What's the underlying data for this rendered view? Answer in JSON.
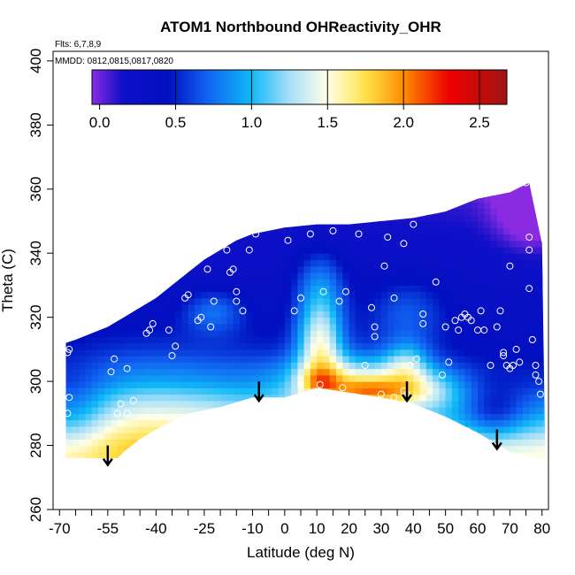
{
  "chart_data": {
    "type": "heatmap",
    "title": "ATOM1 Northbound OHReactivity_OHR",
    "annotations": {
      "flights": "Flts: 6,7,8,9",
      "dates": "MMDD: 0812,0815,0817,0820"
    },
    "xlabel": "Latitude (deg N)",
    "ylabel": "Theta (C)",
    "xlim": [
      -72,
      82
    ],
    "ylim": [
      260,
      403
    ],
    "x_ticks": [
      -70,
      -55,
      -40,
      -25,
      -10,
      0,
      10,
      20,
      30,
      40,
      50,
      60,
      70,
      80
    ],
    "x_minor_ticks": [
      -65,
      -60,
      -50,
      -45,
      -35,
      -30,
      -20,
      -15,
      -5,
      5,
      15,
      25,
      35,
      45,
      55,
      65,
      75
    ],
    "y_ticks": [
      260,
      280,
      300,
      320,
      340,
      360,
      380,
      400
    ],
    "colorbar": {
      "min": -0.05,
      "max": 2.68,
      "ticks": [
        0.0,
        0.5,
        1.0,
        1.5,
        2.0,
        2.5
      ],
      "tick_labels": [
        "0.0",
        "0.5",
        "1.0",
        "1.5",
        "2.0",
        "2.5"
      ],
      "stops": [
        {
          "value": -0.05,
          "color": "#8A2BE2"
        },
        {
          "value": 0.15,
          "color": "#1010C8"
        },
        {
          "value": 0.45,
          "color": "#0010C0"
        },
        {
          "value": 0.7,
          "color": "#1060F0"
        },
        {
          "value": 1.0,
          "color": "#10B8F8"
        },
        {
          "value": 1.25,
          "color": "#A8E0F8"
        },
        {
          "value": 1.5,
          "color": "#FFFFE8"
        },
        {
          "value": 1.75,
          "color": "#FFE24A"
        },
        {
          "value": 2.0,
          "color": "#FF8C00"
        },
        {
          "value": 2.3,
          "color": "#EE0000"
        },
        {
          "value": 2.68,
          "color": "#A01414"
        }
      ]
    },
    "domain": {
      "top": [
        [
          -68,
          312
        ],
        [
          -65,
          313
        ],
        [
          -60,
          315
        ],
        [
          -55,
          317
        ],
        [
          -50,
          320
        ],
        [
          -45,
          323
        ],
        [
          -40,
          326
        ],
        [
          -35,
          330
        ],
        [
          -30,
          334
        ],
        [
          -25,
          338
        ],
        [
          -20,
          341
        ],
        [
          -15,
          344
        ],
        [
          -10,
          346
        ],
        [
          -5,
          347
        ],
        [
          0,
          348
        ],
        [
          10,
          349
        ],
        [
          20,
          349
        ],
        [
          30,
          350
        ],
        [
          40,
          351
        ],
        [
          50,
          353
        ],
        [
          60,
          357
        ],
        [
          70,
          359
        ],
        [
          76,
          362
        ]
      ],
      "right_edge": [
        [
          76,
          362
        ],
        [
          80,
          343
        ],
        [
          81,
          276
        ]
      ],
      "bottom": [
        [
          81,
          276
        ],
        [
          77,
          276
        ],
        [
          70,
          278
        ],
        [
          60,
          284
        ],
        [
          50,
          289
        ],
        [
          45,
          291
        ],
        [
          40,
          293
        ],
        [
          30,
          295
        ],
        [
          20,
          296.5
        ],
        [
          10,
          298
        ],
        [
          0,
          295
        ],
        [
          -10,
          295
        ],
        [
          -20,
          292
        ],
        [
          -30,
          290
        ],
        [
          -40,
          285
        ],
        [
          -45,
          282
        ],
        [
          -50,
          278
        ],
        [
          -52,
          276
        ],
        [
          -68,
          276
        ]
      ]
    },
    "field": {
      "base_profile": [
        [
          270,
          1.65
        ],
        [
          280,
          1.45
        ],
        [
          290,
          0.95
        ],
        [
          300,
          0.55
        ],
        [
          310,
          0.4
        ],
        [
          325,
          0.3
        ],
        [
          340,
          0.22
        ],
        [
          355,
          0.1
        ],
        [
          365,
          -0.05
        ]
      ],
      "features": [
        {
          "name": "southern-plume",
          "lat": -40,
          "theta": 290,
          "value": 0.5,
          "sigma_lat": 30,
          "sigma_theta": 14
        },
        {
          "name": "tropical-layer",
          "lat": 20,
          "theta": 300,
          "value": 0.85,
          "sigma_lat": 14,
          "sigma_theta": 6
        },
        {
          "name": "tropical-core",
          "lat": 27,
          "theta": 297,
          "value": 0.55,
          "sigma_lat": 9,
          "sigma_theta": 3
        },
        {
          "name": "equatorial-core",
          "lat": 11,
          "theta": 300,
          "value": 0.4,
          "sigma_lat": 4,
          "sigma_theta": 3
        },
        {
          "name": "northern-layer",
          "lat": 43,
          "theta": 298,
          "value": 0.55,
          "sigma_lat": 10,
          "sigma_theta": 5
        },
        {
          "name": "equatorial-tower",
          "lat": 11,
          "theta": 312,
          "value": 0.95,
          "sigma_lat": 5,
          "sigma_theta": 9
        },
        {
          "name": "north-tower",
          "lat": 38,
          "theta": 306,
          "value": 0.5,
          "sigma_lat": 5,
          "sigma_theta": 5
        },
        {
          "name": "equatorial-upper",
          "lat": 11,
          "theta": 330,
          "value": 0.5,
          "sigma_lat": 6,
          "sigma_theta": 9
        },
        {
          "name": "midlat-upper",
          "lat": 38,
          "theta": 322,
          "value": 0.35,
          "sigma_lat": 9,
          "sigma_theta": 8
        },
        {
          "name": "southern-upper",
          "lat": -22,
          "theta": 322,
          "value": 0.4,
          "sigma_lat": 7,
          "sigma_theta": 5
        },
        {
          "name": "arctic-surface",
          "lat": 65,
          "theta": 290,
          "value": -0.4,
          "sigma_lat": 7,
          "sigma_theta": 6
        },
        {
          "name": "arctic-stratosphere",
          "lat": 77,
          "theta": 355,
          "value": -0.45,
          "sigma_lat": 8,
          "sigma_theta": 9
        },
        {
          "name": "southern-lowlevel",
          "lat": -66,
          "theta": 290,
          "value": -0.35,
          "sigma_lat": 8,
          "sigma_theta": 10
        }
      ]
    },
    "observations": [
      [
        -67,
        310
      ],
      [
        -67.5,
        309
      ],
      [
        -67,
        295
      ],
      [
        -67.5,
        290
      ],
      [
        -54,
        303
      ],
      [
        -53,
        307
      ],
      [
        -52,
        290
      ],
      [
        -51,
        293
      ],
      [
        -49,
        304
      ],
      [
        -49,
        290
      ],
      [
        -47,
        294
      ],
      [
        -48.5,
        277
      ],
      [
        -43,
        315
      ],
      [
        -42,
        316
      ],
      [
        -41,
        318
      ],
      [
        -36,
        316
      ],
      [
        -35,
        308
      ],
      [
        -34,
        311
      ],
      [
        -35,
        288
      ],
      [
        -31,
        326
      ],
      [
        -30,
        327
      ],
      [
        -27,
        319
      ],
      [
        -26,
        320
      ],
      [
        -23,
        317
      ],
      [
        -24,
        335
      ],
      [
        -22,
        325
      ],
      [
        -18,
        341
      ],
      [
        -17,
        334
      ],
      [
        -16,
        335
      ],
      [
        -15,
        328
      ],
      [
        -15,
        325
      ],
      [
        -13,
        322
      ],
      [
        -11,
        341
      ],
      [
        -9,
        346
      ],
      [
        1,
        344
      ],
      [
        3,
        322
      ],
      [
        5,
        326
      ],
      [
        8,
        346
      ],
      [
        11,
        299
      ],
      [
        12,
        328
      ],
      [
        15,
        347
      ],
      [
        17,
        325
      ],
      [
        18,
        298
      ],
      [
        19,
        328
      ],
      [
        23,
        346
      ],
      [
        25,
        305
      ],
      [
        27,
        323
      ],
      [
        28,
        317
      ],
      [
        28,
        314
      ],
      [
        30,
        296
      ],
      [
        31,
        336
      ],
      [
        32,
        345
      ],
      [
        34,
        326
      ],
      [
        34,
        295
      ],
      [
        37,
        343
      ],
      [
        37,
        297
      ],
      [
        38,
        296
      ],
      [
        39,
        305
      ],
      [
        40,
        349
      ],
      [
        41,
        307
      ],
      [
        43,
        321
      ],
      [
        43,
        318
      ],
      [
        47,
        331
      ],
      [
        49,
        302
      ],
      [
        50,
        317
      ],
      [
        51,
        306
      ],
      [
        53,
        319
      ],
      [
        54,
        316
      ],
      [
        55,
        320
      ],
      [
        56,
        321
      ],
      [
        57,
        320
      ],
      [
        58,
        319
      ],
      [
        60,
        316
      ],
      [
        61,
        322
      ],
      [
        62,
        316
      ],
      [
        64,
        305
      ],
      [
        66,
        317
      ],
      [
        67,
        322
      ],
      [
        68,
        309
      ],
      [
        68,
        308
      ],
      [
        69,
        305
      ],
      [
        70,
        336
      ],
      [
        70,
        304
      ],
      [
        71,
        305
      ],
      [
        72,
        310
      ],
      [
        73,
        306
      ],
      [
        75,
        362
      ],
      [
        76,
        345
      ],
      [
        76,
        341
      ],
      [
        76,
        329
      ],
      [
        77,
        313
      ],
      [
        78,
        305
      ],
      [
        78,
        302
      ],
      [
        79,
        300
      ],
      [
        79.5,
        296
      ]
    ],
    "arrows": [
      [
        -55,
        280
      ],
      [
        -8,
        300
      ],
      [
        38,
        300
      ],
      [
        66,
        285
      ]
    ]
  }
}
